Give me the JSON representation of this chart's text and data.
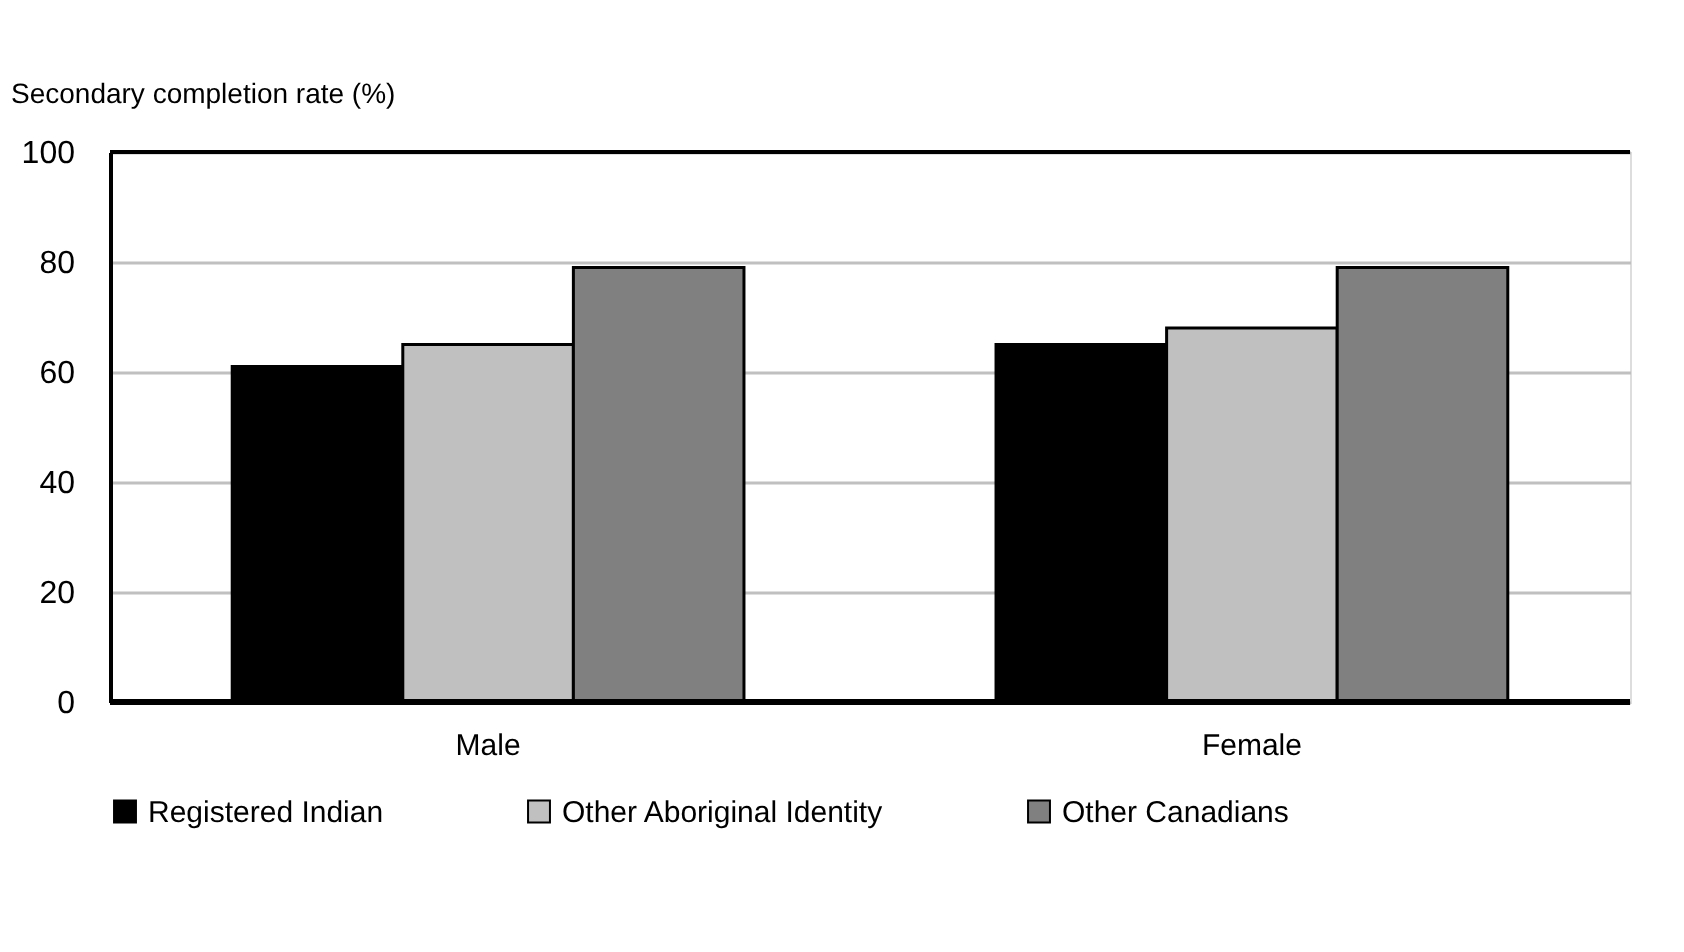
{
  "chart_data": {
    "type": "bar",
    "ylabel": "Secondary completion rate (%)",
    "categories": [
      "Male",
      "Female"
    ],
    "series": [
      {
        "name": "Registered Indian",
        "color": "#000000",
        "values": [
          61,
          65
        ]
      },
      {
        "name": "Other Aboriginal Identity",
        "color": "#c0c0c0",
        "values": [
          65,
          68
        ]
      },
      {
        "name": "Other Canadians",
        "color": "#808080",
        "values": [
          79,
          79
        ]
      }
    ],
    "ylim": [
      0,
      100
    ],
    "yticks": [
      0,
      20,
      40,
      60,
      80,
      100
    ],
    "grid": "y",
    "legend": "bottom"
  }
}
